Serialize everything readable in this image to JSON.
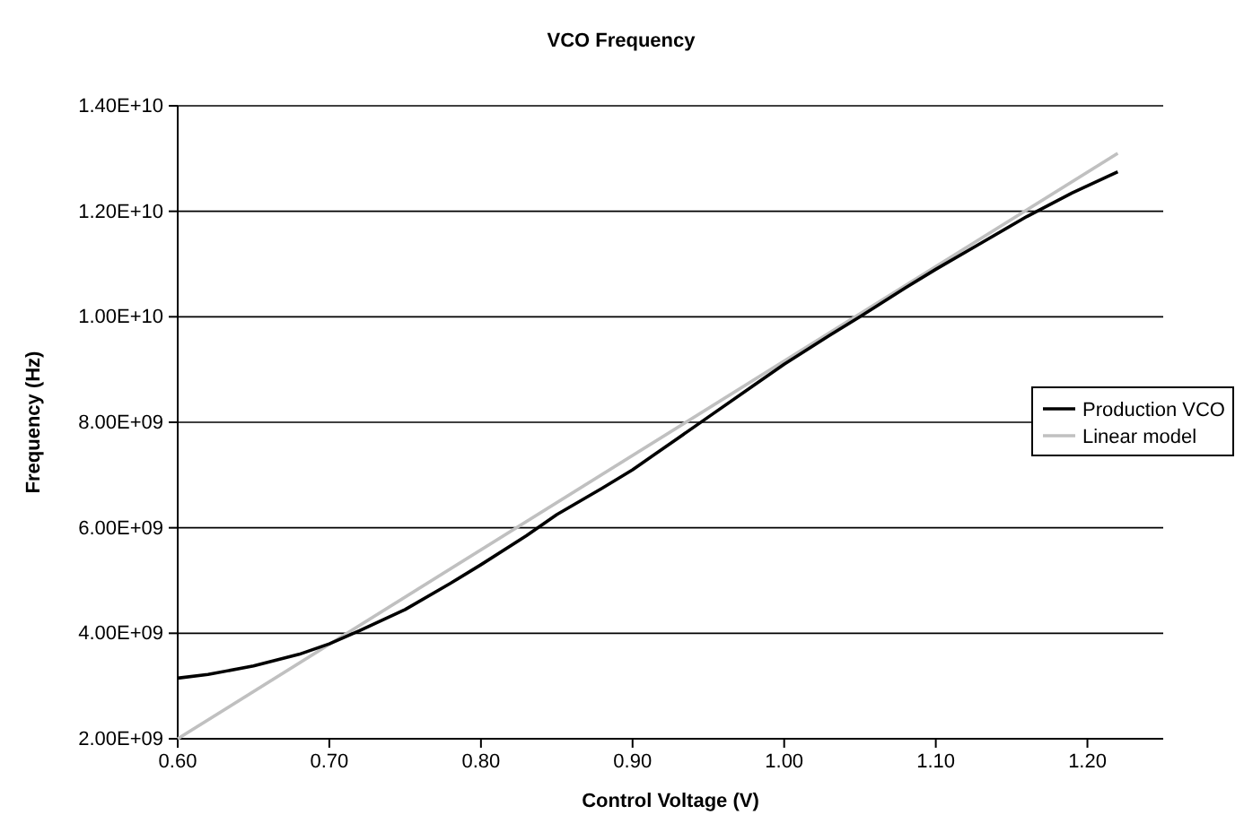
{
  "chart_data": {
    "type": "line",
    "title": "VCO Frequency",
    "xlabel": "Control Voltage (V)",
    "ylabel": "Frequency (Hz)",
    "xlim": [
      0.6,
      1.25
    ],
    "xticks": [
      {
        "value": 0.6,
        "label": "0.60"
      },
      {
        "value": 0.7,
        "label": "0.70"
      },
      {
        "value": 0.8,
        "label": "0.80"
      },
      {
        "value": 0.9,
        "label": "0.90"
      },
      {
        "value": 1.0,
        "label": "1.00"
      },
      {
        "value": 1.1,
        "label": "1.10"
      },
      {
        "value": 1.2,
        "label": "1.20"
      }
    ],
    "ylim": [
      2000000000.0,
      14000000000.0
    ],
    "yticks": [
      {
        "value": 2000000000.0,
        "label": "2.00E+09"
      },
      {
        "value": 4000000000.0,
        "label": "4.00E+09"
      },
      {
        "value": 6000000000.0,
        "label": "6.00E+09"
      },
      {
        "value": 8000000000.0,
        "label": "8.00E+09"
      },
      {
        "value": 10000000000.0,
        "label": "1.00E+10"
      },
      {
        "value": 12000000000.0,
        "label": "1.20E+10"
      },
      {
        "value": 14000000000.0,
        "label": "1.40E+10"
      }
    ],
    "grid": "y",
    "legend": "right",
    "marker": "none",
    "line_style": "solid",
    "series": [
      {
        "name": "Production VCO",
        "color": "#000000",
        "x": [
          0.6,
          0.62,
          0.65,
          0.68,
          0.7,
          0.72,
          0.75,
          0.78,
          0.8,
          0.83,
          0.85,
          0.88,
          0.9,
          0.93,
          0.95,
          0.98,
          1.0,
          1.03,
          1.05,
          1.08,
          1.1,
          1.13,
          1.16,
          1.19,
          1.22
        ],
        "values": [
          3150000000.0,
          3220000000.0,
          3380000000.0,
          3600000000.0,
          3800000000.0,
          4050000000.0,
          4450000000.0,
          4950000000.0,
          5300000000.0,
          5850000000.0,
          6250000000.0,
          6750000000.0,
          7100000000.0,
          7700000000.0,
          8100000000.0,
          8700000000.0,
          9100000000.0,
          9650000000.0,
          10000000000.0,
          10550000000.0,
          10900000000.0,
          11400000000.0,
          11900000000.0,
          12350000000.0,
          12750000000.0
        ]
      },
      {
        "name": "Linear model",
        "color": "#c0c0c0",
        "x": [
          0.6,
          1.22
        ],
        "values": [
          2000000000.0,
          13100000000.0
        ]
      }
    ]
  }
}
